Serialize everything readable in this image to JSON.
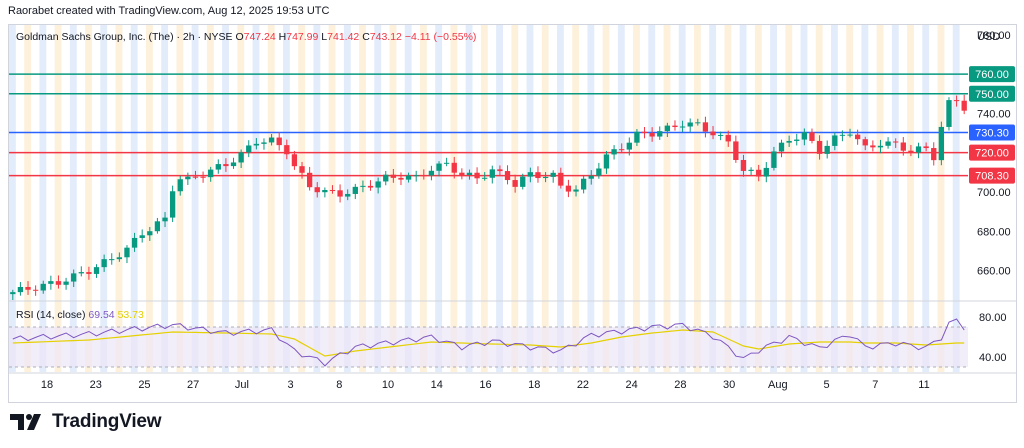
{
  "header": {
    "attribution": "Raorabet created with TradingView.com, Aug 12, 2025 19:53 UTC"
  },
  "legend": {
    "instrument": "Goldman Sachs Group, Inc. (The) · 2h · NYSE",
    "open_label": "O",
    "open": "747.24",
    "high_label": "H",
    "high": "747.99",
    "low_label": "L",
    "low": "741.42",
    "close_label": "C",
    "close": "743.12",
    "change": "−4.11 (−0.55%)"
  },
  "currency": "USD",
  "rsi_legend": {
    "label": "RSI (14, close)",
    "rsi": "69.54",
    "ma": "53.73"
  },
  "footer": {
    "brand": "TradingView"
  },
  "colors": {
    "up": "#089981",
    "down": "#f23645",
    "blue_line": "#2962ff",
    "green_line": "#089981",
    "red_line": "#f23645",
    "rsi": "#7e57c2",
    "rsi_ma": "#e5d000",
    "band_blue": "#e3ecfb",
    "band_orange": "#fdf1dc"
  },
  "chart_data": [
    {
      "type": "candlestick",
      "title": "Goldman Sachs Group, Inc. (The) · 2h · NYSE",
      "ylabel": "USD",
      "ylim": [
        645,
        785
      ],
      "y_ticks": [
        660,
        680,
        700,
        720,
        740,
        780
      ],
      "x_ticks": [
        "18",
        "23",
        "25",
        "27",
        "Jul",
        "3",
        "8",
        "10",
        "14",
        "16",
        "18",
        "22",
        "24",
        "28",
        "30",
        "Aug",
        "5",
        "7",
        "11"
      ],
      "horizontal_levels": [
        {
          "value": 760.0,
          "label": "760.00",
          "color": "#089981"
        },
        {
          "value": 750.0,
          "label": "750.00",
          "color": "#089981"
        },
        {
          "value": 730.3,
          "label": "730.30",
          "color": "#2962ff"
        },
        {
          "value": 720.0,
          "label": "720.00",
          "color": "#f23645"
        },
        {
          "value": 708.3,
          "label": "708.30",
          "color": "#f23645"
        }
      ],
      "price_path": [
        [
          0,
          649
        ],
        [
          6,
          654
        ],
        [
          10,
          660
        ],
        [
          13,
          666
        ],
        [
          15,
          671
        ],
        [
          17,
          679
        ],
        [
          20,
          686
        ],
        [
          21,
          702
        ],
        [
          22,
          707
        ],
        [
          23,
          706
        ],
        [
          26,
          711
        ],
        [
          28,
          714
        ],
        [
          30,
          719
        ],
        [
          32,
          726
        ],
        [
          34,
          726
        ],
        [
          36,
          721
        ],
        [
          37,
          713
        ],
        [
          39,
          703
        ],
        [
          41,
          700
        ],
        [
          43,
          699
        ],
        [
          45,
          701
        ],
        [
          47,
          704
        ],
        [
          49,
          707
        ],
        [
          51,
          708
        ],
        [
          53,
          707
        ],
        [
          55,
          712
        ],
        [
          57,
          714
        ],
        [
          59,
          709
        ],
        [
          61,
          707
        ],
        [
          63,
          711
        ],
        [
          65,
          707
        ],
        [
          66,
          704
        ],
        [
          68,
          709
        ],
        [
          71,
          708
        ],
        [
          72,
          703
        ],
        [
          74,
          701
        ],
        [
          76,
          709
        ],
        [
          78,
          718
        ],
        [
          80,
          723
        ],
        [
          82,
          729
        ],
        [
          84,
          730
        ],
        [
          86,
          732
        ],
        [
          88,
          735
        ],
        [
          90,
          734
        ],
        [
          92,
          730
        ],
        [
          94,
          725
        ],
        [
          96,
          711
        ],
        [
          98,
          708
        ],
        [
          100,
          720
        ],
        [
          102,
          727
        ],
        [
          104,
          729
        ],
        [
          106,
          721
        ],
        [
          108,
          727
        ],
        [
          110,
          731
        ],
        [
          112,
          722
        ],
        [
          114,
          725
        ],
        [
          116,
          724
        ],
        [
          118,
          721
        ],
        [
          120,
          722
        ],
        [
          121,
          718
        ],
        [
          122,
          733
        ],
        [
          123,
          745
        ],
        [
          124,
          747
        ],
        [
          124.5,
          743
        ]
      ]
    },
    {
      "type": "line",
      "title": "RSI (14, close)",
      "ylim": [
        25,
        95
      ],
      "y_ticks": [
        40,
        80
      ],
      "bands": [
        30,
        70
      ],
      "series": [
        {
          "name": "RSI",
          "values": [
            [
              0,
              58
            ],
            [
              10,
              63
            ],
            [
              21,
              72
            ],
            [
              28,
              64
            ],
            [
              34,
              67
            ],
            [
              37,
              46
            ],
            [
              41,
              34
            ],
            [
              45,
              50
            ],
            [
              55,
              60
            ],
            [
              59,
              50
            ],
            [
              63,
              56
            ],
            [
              68,
              50
            ],
            [
              72,
              46
            ],
            [
              76,
              62
            ],
            [
              80,
              66
            ],
            [
              84,
              70
            ],
            [
              88,
              72
            ],
            [
              92,
              61
            ],
            [
              96,
              38
            ],
            [
              98,
              47
            ],
            [
              102,
              60
            ],
            [
              106,
              49
            ],
            [
              110,
              63
            ],
            [
              112,
              50
            ],
            [
              116,
              54
            ],
            [
              120,
              49
            ],
            [
              122,
              60
            ],
            [
              123,
              73
            ],
            [
              124,
              77
            ],
            [
              124.5,
              70
            ]
          ]
        },
        {
          "name": "MA",
          "values": [
            [
              0,
              54
            ],
            [
              10,
              57
            ],
            [
              21,
              65
            ],
            [
              28,
              64
            ],
            [
              34,
              63
            ],
            [
              37,
              58
            ],
            [
              41,
              41
            ],
            [
              45,
              46
            ],
            [
              55,
              55
            ],
            [
              59,
              54
            ],
            [
              63,
              53
            ],
            [
              68,
              52
            ],
            [
              72,
              50
            ],
            [
              76,
              54
            ],
            [
              80,
              60
            ],
            [
              84,
              64
            ],
            [
              88,
              67
            ],
            [
              92,
              65
            ],
            [
              96,
              51
            ],
            [
              98,
              48
            ],
            [
              102,
              53
            ],
            [
              106,
              55
            ],
            [
              110,
              55
            ],
            [
              112,
              54
            ],
            [
              116,
              54
            ],
            [
              120,
              52
            ],
            [
              122,
              53
            ],
            [
              124,
              54
            ],
            [
              124.5,
              54
            ]
          ]
        }
      ]
    }
  ]
}
